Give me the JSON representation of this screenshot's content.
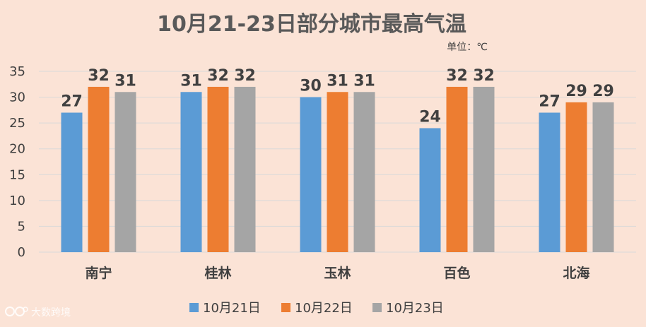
{
  "chart_data": {
    "type": "bar",
    "title": "10月21-23日部分城市最高气温",
    "unit_label": "单位：℃",
    "categories": [
      "南宁",
      "桂林",
      "玉林",
      "百色",
      "北海"
    ],
    "series": [
      {
        "name": "10月21日",
        "values": [
          27,
          31,
          30,
          24,
          27
        ],
        "color": "#5b9bd5"
      },
      {
        "name": "10月22日",
        "values": [
          32,
          32,
          31,
          32,
          29
        ],
        "color": "#ed7d31"
      },
      {
        "name": "10月23日",
        "values": [
          31,
          32,
          31,
          32,
          29
        ],
        "color": "#a5a5a5"
      }
    ],
    "ylim": [
      0,
      35
    ],
    "yticks": [
      0,
      5,
      10,
      15,
      20,
      25,
      30,
      35
    ],
    "grid": true,
    "legend_position": "bottom",
    "data_labels": true,
    "background_color": "#fbe3d6",
    "gridline_color": "#d9d9d9"
  },
  "watermark": {
    "text": "大数跨境",
    "logo": "大数跨境"
  }
}
